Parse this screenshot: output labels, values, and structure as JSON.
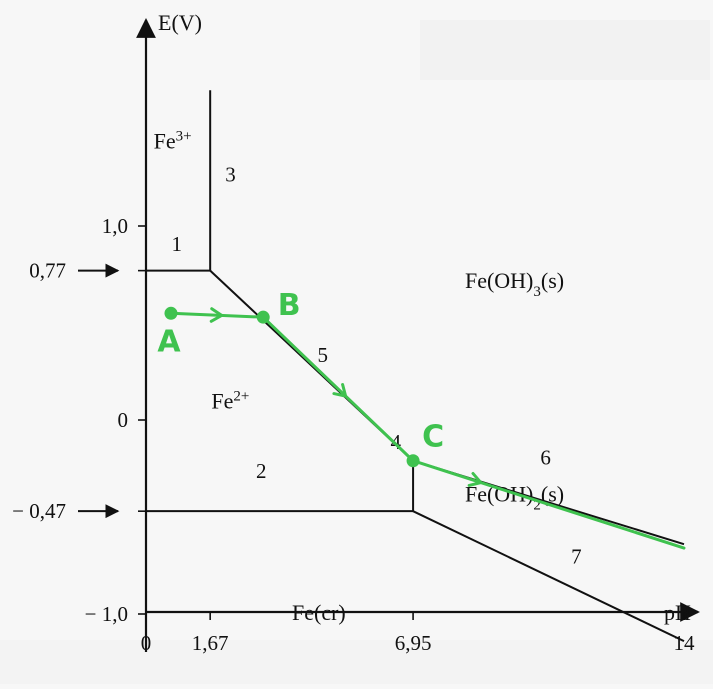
{
  "chart_data": {
    "type": "line",
    "xlabel": "pH",
    "ylabel": "E(V)",
    "xlim": [
      0,
      14
    ],
    "ylim": [
      -1.25,
      1.7
    ],
    "x_ticks": [
      {
        "value": 0,
        "label": "0"
      },
      {
        "value": 1.67,
        "label": "1,67"
      },
      {
        "value": 6.95,
        "label": "6,95"
      },
      {
        "value": 14,
        "label": "14"
      }
    ],
    "y_ticks": [
      {
        "value": 1.0,
        "label": "1,0"
      },
      {
        "value": 0.77,
        "label": "0,77",
        "arrow": true
      },
      {
        "value": 0,
        "label": "0"
      },
      {
        "value": -0.47,
        "label": "− 0,47",
        "arrow": true
      },
      {
        "value": -1.0,
        "label": "− 1,0"
      }
    ],
    "boundaries": [
      {
        "label": "1",
        "points": [
          [
            0,
            0.77
          ],
          [
            1.67,
            0.77
          ]
        ],
        "label_at": [
          0.8,
          0.87
        ]
      },
      {
        "label": "2",
        "points": [
          [
            0,
            -0.47
          ],
          [
            6.95,
            -0.47
          ]
        ],
        "label_at": [
          3.0,
          -0.3
        ]
      },
      {
        "label": "3",
        "points": [
          [
            1.67,
            0.77
          ],
          [
            1.67,
            1.7
          ]
        ],
        "label_at": [
          2.2,
          1.23
        ]
      },
      {
        "label": "4",
        "points": [
          [
            6.95,
            -0.47
          ],
          [
            6.95,
            -0.21
          ]
        ],
        "label_at": [
          6.5,
          -0.15
        ]
      },
      {
        "label": "5",
        "points": [
          [
            1.67,
            0.77
          ],
          [
            6.95,
            -0.21
          ]
        ],
        "label_at": [
          4.6,
          0.3
        ]
      },
      {
        "label": "6",
        "points": [
          [
            6.95,
            -0.21
          ],
          [
            14,
            -0.64
          ]
        ],
        "label_at": [
          10.4,
          -0.23
        ]
      },
      {
        "label": "7",
        "points": [
          [
            6.95,
            -0.47
          ],
          [
            14,
            -1.14
          ]
        ],
        "label_at": [
          11.2,
          -0.74
        ]
      }
    ],
    "regions": [
      {
        "label": "Fe",
        "sup": "3+",
        "at": [
          0.2,
          1.4
        ]
      },
      {
        "label": "Fe",
        "sup": "2+",
        "at": [
          1.7,
          0.06
        ]
      },
      {
        "label": "Fe(OH)",
        "sub": "3",
        "suffix": "(s)",
        "at": [
          8.3,
          0.68
        ]
      },
      {
        "label": "Fe(OH)",
        "sub": "2",
        "suffix": "(s)",
        "at": [
          8.3,
          -0.42
        ]
      },
      {
        "label": "Fe(cr)",
        "at": [
          3.8,
          -1.03
        ]
      }
    ],
    "annotations": {
      "color": "#3fc24f",
      "points": [
        {
          "label": "A",
          "x": 0.65,
          "y": 0.55
        },
        {
          "label": "B",
          "x": 3.05,
          "y": 0.53
        },
        {
          "label": "C",
          "x": 6.95,
          "y": -0.21
        }
      ],
      "path": [
        [
          0.65,
          0.55
        ],
        [
          3.05,
          0.53
        ],
        [
          6.95,
          -0.21
        ],
        [
          14,
          -0.66
        ]
      ]
    }
  }
}
